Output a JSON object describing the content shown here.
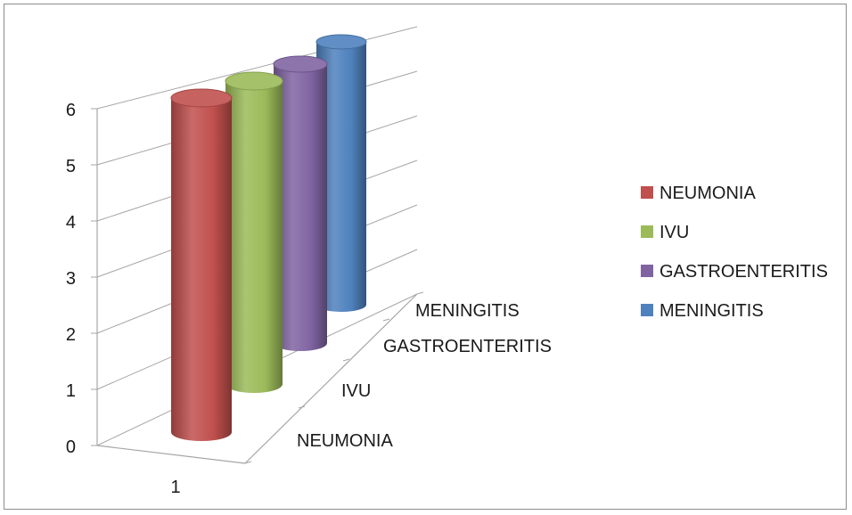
{
  "chart_data": {
    "type": "bar",
    "variant": "3d-cylinder",
    "title": "",
    "categories": [
      "1"
    ],
    "depth_categories": [
      "NEUMONIA",
      "IVU",
      "GASTROENTERITIS",
      "MENINGITIS"
    ],
    "series": [
      {
        "name": "NEUMONIA",
        "values": [
          6
        ],
        "color": "#c0504d"
      },
      {
        "name": "IVU",
        "values": [
          6
        ],
        "color": "#9bbb59"
      },
      {
        "name": "GASTROENTERITIS",
        "values": [
          6
        ],
        "color": "#8064a2"
      },
      {
        "name": "MENINGITIS",
        "values": [
          6
        ],
        "color": "#4f81bd"
      }
    ],
    "ylim": [
      0,
      6
    ],
    "yticks": [
      "0",
      "1",
      "2",
      "3",
      "4",
      "5",
      "6"
    ],
    "grid": true,
    "legend": "right"
  }
}
